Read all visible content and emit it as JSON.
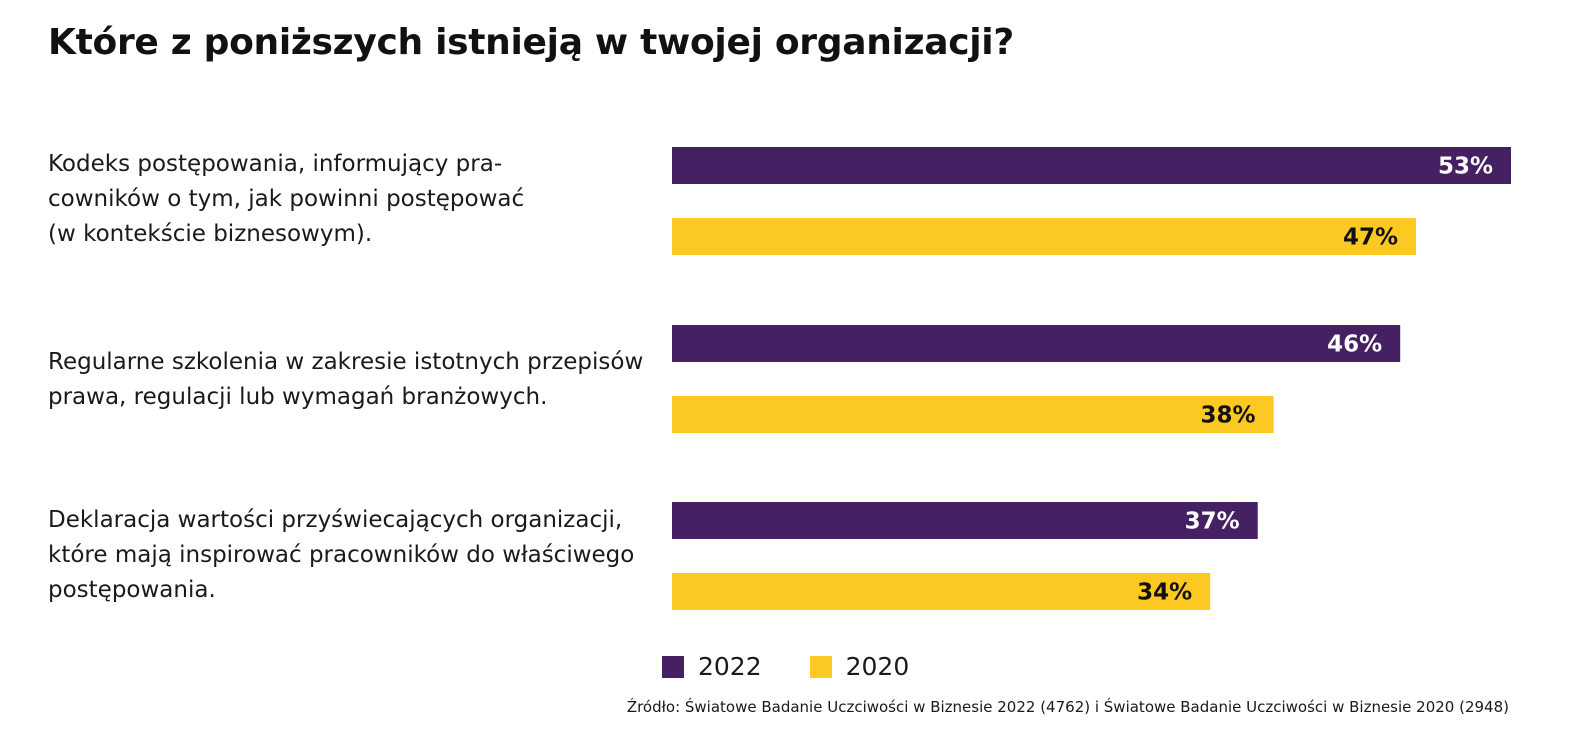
{
  "title": "Które z poniższych istnieją w twojej organizacji?",
  "colors": {
    "series_2022": "#452063",
    "series_2020": "#FCC922",
    "label_on_dark": "#ffffff",
    "label_on_light": "#111111"
  },
  "categories": [
    {
      "lines": [
        "Kodeks postępowania, informujący pra-",
        "cowników o tym, jak powinni postępować",
        "(w kontekście biznesowym)."
      ]
    },
    {
      "lines": [
        "Regularne szkolenia w zakresie istotnych przepisów",
        "prawa, regulacji lub wymagań branżowych."
      ]
    },
    {
      "lines": [
        "Deklaracja wartości przyświecających organizacji,",
        "które mają inspirować pracowników do właściwego",
        "postępowania."
      ]
    }
  ],
  "chart_data": {
    "type": "bar",
    "orientation": "horizontal",
    "title": "Które z poniższych istnieją w twojej organizacji?",
    "categories": [
      "Kodeks postępowania, informujący pracowników o tym, jak powinni postępować (w kontekście biznesowym).",
      "Regularne szkolenia w zakresie istotnych przepisów prawa, regulacji lub wymagań branżowych.",
      "Deklaracja wartości przyświecających organizacji, które mają inspirować pracowników do właściwego postępowania."
    ],
    "series": [
      {
        "name": "2022",
        "values": [
          53,
          46,
          37
        ],
        "labels": [
          "53%",
          "46%",
          "37%"
        ]
      },
      {
        "name": "2020",
        "values": [
          47,
          38,
          34
        ],
        "labels": [
          "47%",
          "38%",
          "34%"
        ]
      }
    ],
    "xlim": [
      0,
      53
    ],
    "unit": "%",
    "legend": "bottom",
    "grid": false
  },
  "legend": {
    "items": [
      {
        "label": "2022"
      },
      {
        "label": "2020"
      }
    ]
  },
  "source": "Źródło: Światowe Badanie Uczciwości w Biznesie 2022 (4762) i Światowe Badanie Uczciwości w Biznesie 2020 (2948)"
}
